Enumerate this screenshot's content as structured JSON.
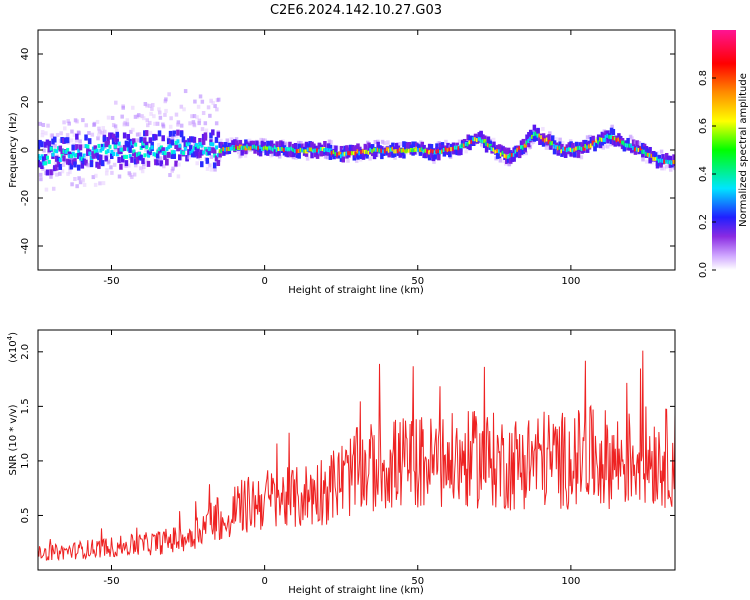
{
  "title": "C2E6.2024.142.10.27.G03",
  "chart_data": [
    {
      "type": "heatmap",
      "xlabel": "Height of straight line (km)",
      "ylabel": "Frequency (Hz)",
      "xlim": [
        -74,
        134
      ],
      "ylim": [
        -50,
        50
      ],
      "xticks": [
        -50,
        0,
        50,
        100
      ],
      "yticks": [
        -40,
        -20,
        0,
        20,
        40
      ],
      "colorbar": {
        "label": "Normalized spectral amplitude",
        "range": [
          0,
          1
        ],
        "ticks": [
          "0.0",
          "0.2",
          "0.4",
          "0.6",
          "0.8"
        ],
        "colors": [
          "#ffffff",
          "#cfa6ff",
          "#8a2be2",
          "#2020ff",
          "#00e5ff",
          "#00ff00",
          "#ffff00",
          "#ff8c00",
          "#ff0000",
          "#ff1493"
        ]
      },
      "ridge": {
        "x": [
          -74,
          -60,
          -45,
          -30,
          -20,
          -15,
          -10,
          0,
          10,
          20,
          25,
          30,
          40,
          50,
          55,
          60,
          65,
          70,
          75,
          80,
          85,
          88,
          92,
          97,
          102,
          108,
          113,
          118,
          123,
          128,
          134
        ],
        "y": [
          -3,
          -1,
          0,
          1,
          1,
          0,
          1,
          1,
          0,
          0,
          -2,
          -1,
          0,
          0,
          -1,
          0,
          2,
          5,
          0,
          -3,
          2,
          7,
          4,
          0,
          0,
          3,
          6,
          2,
          0,
          -4,
          -5
        ]
      }
    },
    {
      "type": "line",
      "xlabel": "Height of straight line (km)",
      "ylabel": "SNR (10 * v/v)",
      "y_multiplier": "(x10",
      "y_multiplier_exp": "4",
      "y_multiplier_close": ")",
      "xlim": [
        -74,
        134
      ],
      "ylim": [
        0,
        22000
      ],
      "xticks": [
        -50,
        0,
        50,
        100
      ],
      "yticks": [
        5000,
        10000,
        15000,
        20000
      ],
      "ytick_labels": [
        "0.5",
        "1.0",
        "1.5",
        "2.0"
      ],
      "color": "#ee2222",
      "series": [
        {
          "x": [
            -74,
            -65,
            -55,
            -45,
            -35,
            -25,
            -20,
            -15,
            -12,
            -10,
            -5,
            0,
            5,
            10,
            15,
            20,
            25,
            30,
            35,
            40,
            45,
            50,
            55,
            60,
            65,
            70,
            75,
            80,
            85,
            90,
            95,
            100,
            105,
            110,
            115,
            120,
            125,
            130,
            134
          ],
          "y": [
            1500,
            1700,
            2000,
            2200,
            2500,
            3000,
            4000,
            5000,
            3500,
            5500,
            6000,
            6500,
            6500,
            6500,
            7000,
            7500,
            8200,
            9000,
            9300,
            9700,
            9800,
            9900,
            9800,
            9900,
            10000,
            10200,
            10000,
            9700,
            10000,
            10300,
            10100,
            10000,
            10400,
            10300,
            10000,
            10200,
            10500,
            10300,
            10200
          ]
        }
      ]
    }
  ]
}
